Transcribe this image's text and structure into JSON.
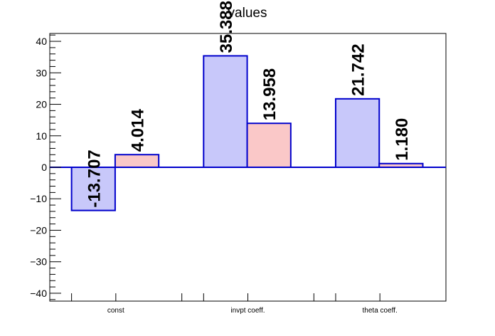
{
  "chart_data": {
    "type": "bar",
    "title": "values",
    "categories": [
      "const",
      "invpt coeff.",
      "theta coeff."
    ],
    "series": [
      {
        "values": [
          -13.707,
          35.388,
          21.742
        ],
        "labels": [
          "-13.707",
          "35.388",
          "21.742"
        ],
        "fill": "#c8c8fa",
        "stroke": "#0000cc"
      },
      {
        "values": [
          4.014,
          13.958,
          1.18
        ],
        "labels": [
          "4.014",
          "13.958",
          "1.180"
        ],
        "fill": "#fac8c8",
        "stroke": "#0000cc"
      }
    ],
    "yticks": [
      -40,
      -30,
      -20,
      -10,
      0,
      10,
      20,
      30,
      40
    ],
    "ytick_labels": [
      "−40",
      "−30",
      "−20",
      "−10",
      "0",
      "10",
      "20",
      "30",
      "40"
    ],
    "ylim": [
      -42.5,
      42.5
    ],
    "xlabel": "",
    "ylabel": "",
    "grid": false,
    "legend": "none",
    "colors": {
      "axis": "#000000",
      "zero_line": "#0000cc"
    }
  }
}
